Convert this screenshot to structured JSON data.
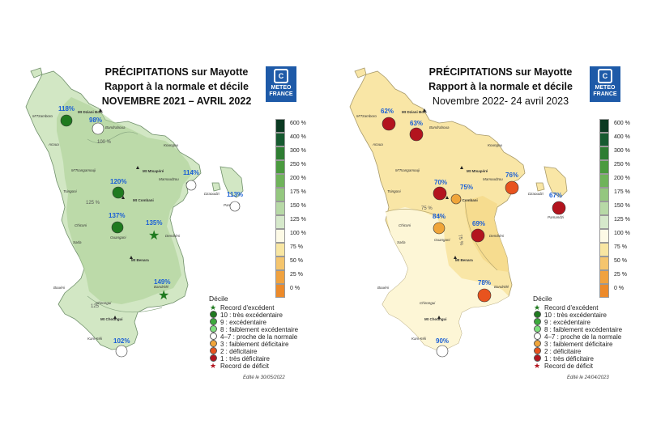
{
  "left": {
    "title1": "PRÉCIPITATIONS sur Mayotte",
    "title2": "Rapport à la normale et décile",
    "title3": "NOVEMBRE 2021 – AVRIL 2022",
    "logo_text": "METEO FRANCE",
    "edit": "Edité le 30/05/2022",
    "places": [
      {
        "name": "M'Tzamboro"
      },
      {
        "name": "Mt Dziani Bolé"
      },
      {
        "name": "Bandraboua"
      },
      {
        "name": "Acoua"
      },
      {
        "name": "Koungou"
      },
      {
        "name": "M'Tsangamouji"
      },
      {
        "name": "Mt Mtsapéré"
      },
      {
        "name": "Mamoudzou"
      },
      {
        "name": "Tsingoni"
      },
      {
        "name": "Mt Combani"
      },
      {
        "name": "Dzaoudzi"
      },
      {
        "name": "Pamandzi"
      },
      {
        "name": "Chiconi"
      },
      {
        "name": "Ouangani"
      },
      {
        "name": "Sada"
      },
      {
        "name": "Dembéni"
      },
      {
        "name": "Mt Benara"
      },
      {
        "name": "Bandrélé"
      },
      {
        "name": "Bouéni"
      },
      {
        "name": "Chirongui"
      },
      {
        "name": "Mt Choungui"
      },
      {
        "name": "Kani-Kéli"
      }
    ],
    "isolines": [
      "100 %",
      "125 %",
      "125"
    ],
    "stations": [
      {
        "value": "118%",
        "decile": "10"
      },
      {
        "value": "98%",
        "decile": "4-7"
      },
      {
        "value": "120%",
        "decile": "10"
      },
      {
        "value": "114%",
        "decile": "4-7"
      },
      {
        "value": "113%",
        "decile": "4-7"
      },
      {
        "value": "137%",
        "decile": "10"
      },
      {
        "value": "135%",
        "decile": "record-excedent"
      },
      {
        "value": "149%",
        "decile": "record-excedent"
      },
      {
        "value": "102%",
        "decile": "4-7"
      }
    ]
  },
  "right": {
    "title1": "PRÉCIPITATIONS sur Mayotte",
    "title2": "Rapport à la normale et décile",
    "title3": "Novembre 2022- 24 avril 2023",
    "logo_text": "METEO FRANCE",
    "edit": "Edité le 24/04/2023",
    "isolines": [
      "75 %",
      "75 %"
    ],
    "stations": [
      {
        "value": "62%",
        "decile": "1"
      },
      {
        "value": "63%",
        "decile": "1"
      },
      {
        "value": "70%",
        "decile": "1"
      },
      {
        "value": "75%",
        "decile": "3"
      },
      {
        "value": "76%",
        "decile": "2"
      },
      {
        "value": "67%",
        "decile": "1"
      },
      {
        "value": "84%",
        "decile": "3"
      },
      {
        "value": "69%",
        "decile": "1"
      },
      {
        "value": "78%",
        "decile": "2"
      },
      {
        "value": "90%",
        "decile": "4-7"
      }
    ]
  },
  "scale": {
    "labels": [
      "600 %",
      "400 %",
      "300 %",
      "250 %",
      "200 %",
      "175 %",
      "150 %",
      "125 %",
      "100 %",
      "75 %",
      "50 %",
      "25 %",
      "0 %"
    ],
    "colors": [
      "#0b3a22",
      "#165a30",
      "#2e7d32",
      "#4a9a3e",
      "#6fb35a",
      "#94c77f",
      "#b7d9a6",
      "#d6e9cb",
      "#fdfae6",
      "#f8e6a2",
      "#f5c56d",
      "#f0a23f",
      "#ec8a2a"
    ]
  },
  "legend": {
    "title": "Décile",
    "items": [
      {
        "label": "Record d'excédent",
        "shape": "star",
        "color": "#1f7a1f"
      },
      {
        "label": "10 : très excédentaire",
        "shape": "dot",
        "color": "#1f7a1f"
      },
      {
        "label": "9 : excédentaire",
        "shape": "dot",
        "color": "#3caa3c"
      },
      {
        "label": "8 : faiblement excédentaire",
        "shape": "dot",
        "color": "#7ee07e"
      },
      {
        "label": "4–7 : proche de la normale",
        "shape": "dot",
        "color": "#ffffff"
      },
      {
        "label": "3 : faiblement déficitaire",
        "shape": "dot",
        "color": "#f0a53a"
      },
      {
        "label": "2 : déficitaire",
        "shape": "dot",
        "color": "#e8531e"
      },
      {
        "label": "1 : très déficitaire",
        "shape": "dot",
        "color": "#b3141e"
      },
      {
        "label": "Record de déficit",
        "shape": "star",
        "color": "#b3141e"
      }
    ]
  }
}
